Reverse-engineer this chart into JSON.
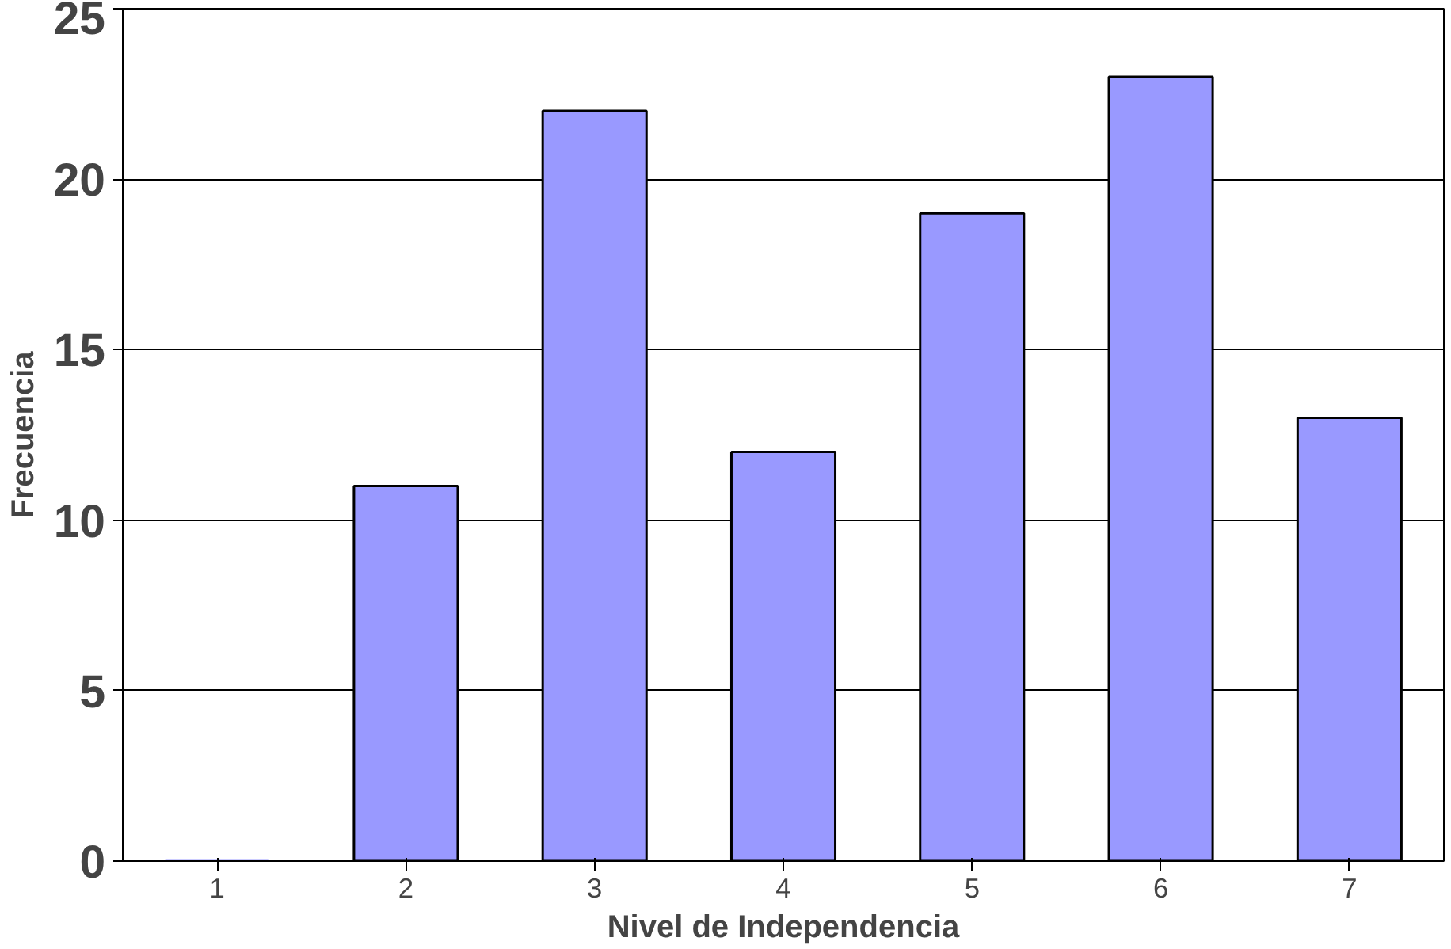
{
  "chart_data": {
    "type": "bar",
    "xlabel": "Nivel de Independencia",
    "ylabel": "Frecuencia",
    "categories": [
      "1",
      "2",
      "3",
      "4",
      "5",
      "6",
      "7"
    ],
    "values": [
      0,
      11,
      22,
      12,
      19,
      23,
      13
    ],
    "color": "#9999ff",
    "ylim": [
      0,
      25
    ],
    "yticks": [
      0,
      5,
      10,
      15,
      20,
      25
    ],
    "grid": "y"
  }
}
